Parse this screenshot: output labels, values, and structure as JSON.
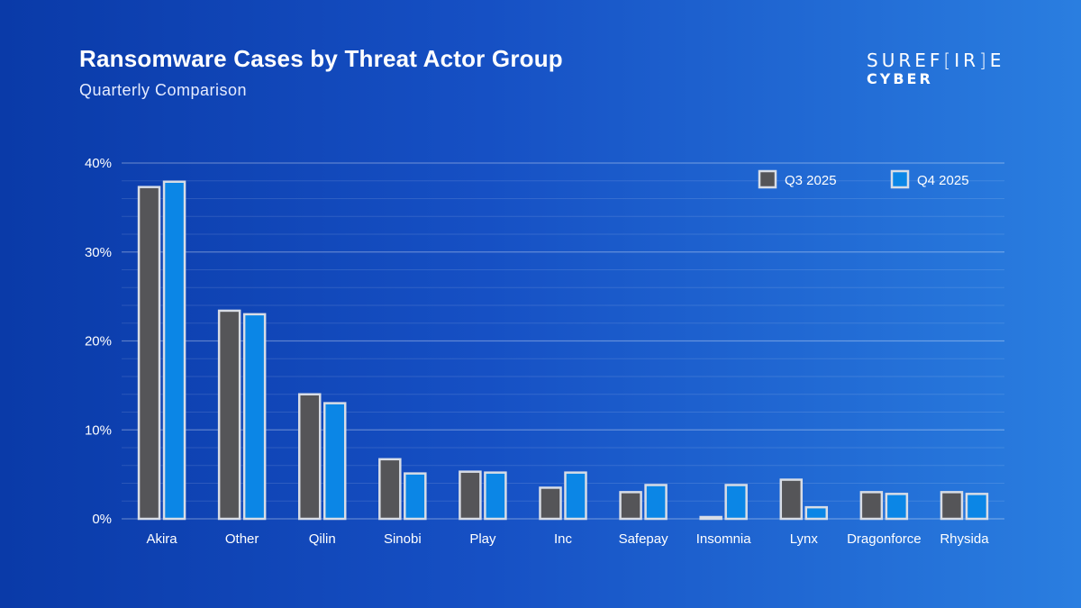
{
  "title": "Ransomware Cases by Threat Actor Group",
  "subtitle": "Quarterly Comparison",
  "logo": {
    "line1": "SUREF[IR]E",
    "line2": "CYBER"
  },
  "chart_data": {
    "type": "bar",
    "categories": [
      "Akira",
      "Other",
      "Qilin",
      "Sinobi",
      "Play",
      "Inc",
      "Safepay",
      "Insomnia",
      "Lynx",
      "Dragonforce",
      "Rhysida"
    ],
    "series": [
      {
        "name": "Q3 2025",
        "color": "#555558",
        "values": [
          37.3,
          23.4,
          14.0,
          6.7,
          5.3,
          3.5,
          3.0,
          0.1,
          4.4,
          3.0,
          3.0
        ]
      },
      {
        "name": "Q4 2025",
        "color": "#0b86e6",
        "values": [
          37.9,
          23.0,
          13.0,
          5.1,
          5.2,
          5.2,
          3.8,
          3.8,
          1.3,
          2.8,
          2.8
        ]
      }
    ],
    "ylim": [
      0,
      40
    ],
    "yticks": [
      "0%",
      "10%",
      "20%",
      "30%",
      "40%"
    ],
    "grid": true,
    "legend": "top-right"
  }
}
